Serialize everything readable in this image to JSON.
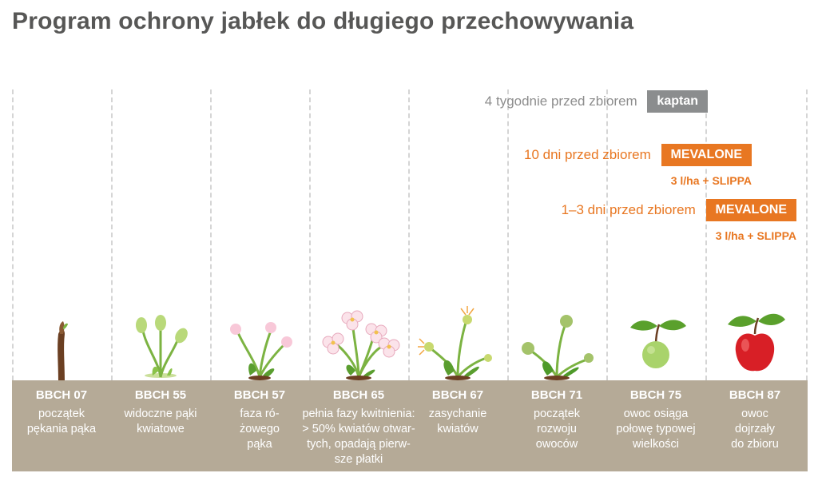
{
  "title": "Program ochrony jabłek do długiego przechowywania",
  "treatments": [
    {
      "timing": "4 tygodnie przed zbiorem",
      "product": "kaptan",
      "dose": ""
    },
    {
      "timing": "10 dni przed zbiorem",
      "product": "MEVALONE",
      "dose": "3 l/ha + SLIPPA"
    },
    {
      "timing": "1–3 dni przed zbiorem",
      "product": "MEVALONE",
      "dose": "3 l/ha + SLIPPA"
    }
  ],
  "stages": [
    {
      "code": "BBCH 07",
      "desc": "początek\npękania pąka",
      "icon": "bud-burst-icon"
    },
    {
      "code": "BBCH 55",
      "desc": "widoczne pąki\nkwiatowe",
      "icon": "green-flower-buds-icon"
    },
    {
      "code": "BBCH 57",
      "desc": "faza ró-\nżowego\npąka",
      "icon": "pink-buds-icon"
    },
    {
      "code": "BBCH 65",
      "desc": "pełnia fazy kwitnienia:\n> 50% kwiatów otwar-\ntych, opadają pierw-\nsze płatki",
      "icon": "full-bloom-icon"
    },
    {
      "code": "BBCH 67",
      "desc": "zasychanie\nkwiatów",
      "icon": "wilting-flowers-icon"
    },
    {
      "code": "BBCH 71",
      "desc": "początek\nrozwoju\nowoców",
      "icon": "fruit-set-icon"
    },
    {
      "code": "BBCH 75",
      "desc": "owoc osiąga\npołowę typowej\nwielkości",
      "icon": "green-apple-icon"
    },
    {
      "code": "BBCH 87",
      "desc": "owoc\ndojrzały\ndo zbioru",
      "icon": "red-apple-icon"
    }
  ],
  "colors": {
    "accent": "#e87722",
    "neutral_badge": "#8b8d8e",
    "stage_bar": "#b5aa97",
    "title": "#575756"
  }
}
